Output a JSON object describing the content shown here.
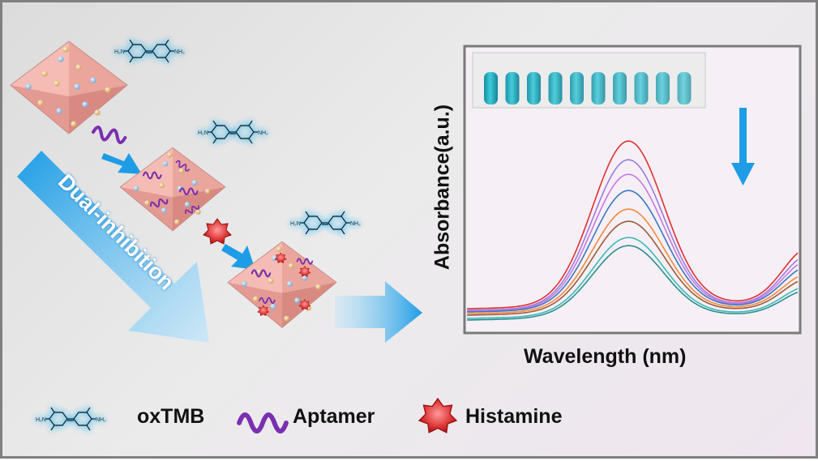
{
  "labels": {
    "dual_inhibition": "Dual-inhibition",
    "y_axis": "Absorbance(a.u.)",
    "x_axis": "Wavelength (nm)"
  },
  "legend": {
    "oxtmb": "oxTMB",
    "aptamer": "Aptamer",
    "histamine": "Histamine"
  },
  "colors": {
    "octahedron": "#f0b0a8",
    "arrow_blue": "#1e9de6",
    "aptamer": "#7a2fb0",
    "histamine": "#e03a3a",
    "molecule_glow": "#2bb6f0"
  },
  "curve_colors": [
    "#e03030",
    "#9b7be0",
    "#c47ae0",
    "#3a77c0",
    "#f08a3c",
    "#9e5a3a",
    "#3ab8b8",
    "#2a8f8f"
  ],
  "icons": [
    "octahedron-icon",
    "aptamer-icon",
    "histamine-icon",
    "oxtmb-molecule-icon",
    "cuvette-photo"
  ]
}
